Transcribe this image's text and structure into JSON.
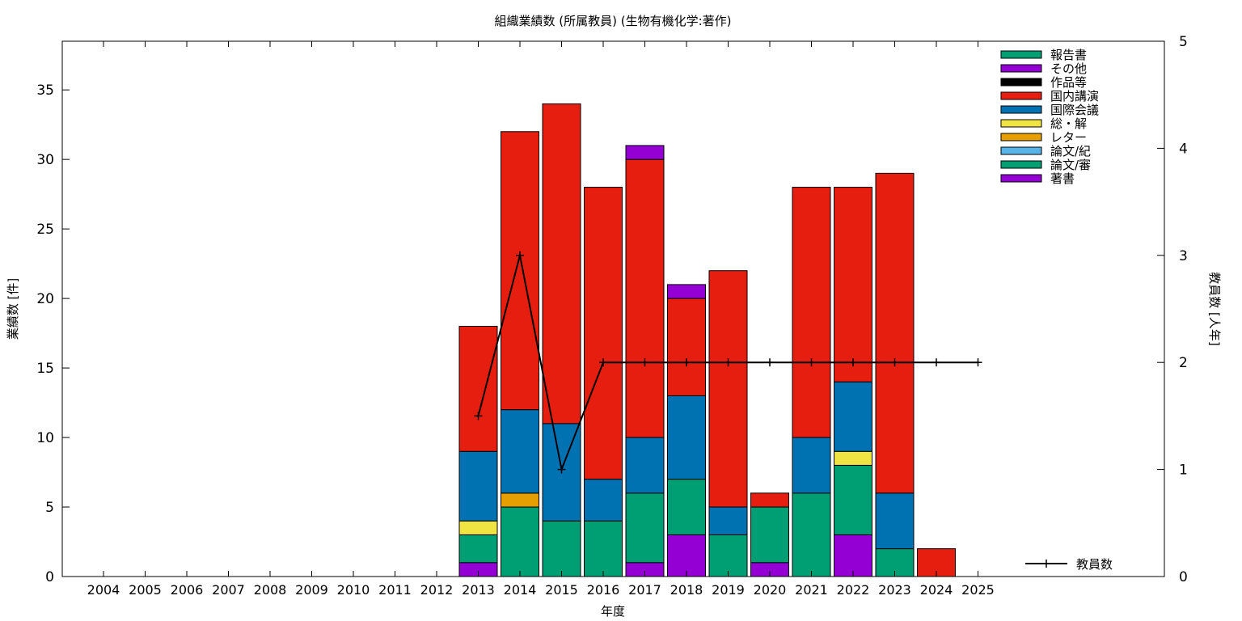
{
  "chart_data": {
    "type": "bar",
    "stacked": true,
    "title": "組織業績数 (所属教員) (生物有機化学:著作)",
    "xlabel": "年度",
    "ylabel": "業績数 [件]",
    "y2label": "教員数 [人年]",
    "ylim": [
      0,
      38.5
    ],
    "y2lim": [
      0,
      5
    ],
    "yticks": [
      "0",
      "5",
      "10",
      "15",
      "20",
      "25",
      "30",
      "35"
    ],
    "y2ticks": [
      "0",
      "1",
      "2",
      "3",
      "4",
      "5"
    ],
    "grid": false,
    "legend_position": "top-right",
    "categories": [
      "2004",
      "2005",
      "2006",
      "2007",
      "2008",
      "2009",
      "2010",
      "2011",
      "2012",
      "2013",
      "2014",
      "2015",
      "2016",
      "2017",
      "2018",
      "2019",
      "2020",
      "2021",
      "2022",
      "2023",
      "2024",
      "2025"
    ],
    "series": [
      {
        "name": "著書",
        "color": "#9400d3",
        "values": [
          0,
          0,
          0,
          0,
          0,
          0,
          0,
          0,
          0,
          1,
          0,
          0,
          0,
          1,
          3,
          0,
          1,
          0,
          3,
          0,
          0,
          0
        ]
      },
      {
        "name": "論文/審",
        "color": "#009e73",
        "values": [
          0,
          0,
          0,
          0,
          0,
          0,
          0,
          0,
          0,
          2,
          5,
          4,
          4,
          5,
          4,
          3,
          4,
          6,
          5,
          2,
          0,
          0
        ]
      },
      {
        "name": "論文/紀",
        "color": "#56b4e9",
        "values": [
          0,
          0,
          0,
          0,
          0,
          0,
          0,
          0,
          0,
          0,
          0,
          0,
          0,
          0,
          0,
          0,
          0,
          0,
          0,
          0,
          0,
          0
        ]
      },
      {
        "name": "レター",
        "color": "#e69f00",
        "values": [
          0,
          0,
          0,
          0,
          0,
          0,
          0,
          0,
          0,
          0,
          1,
          0,
          0,
          0,
          0,
          0,
          0,
          0,
          0,
          0,
          0,
          0
        ]
      },
      {
        "name": "総・解",
        "color": "#f0e442",
        "values": [
          0,
          0,
          0,
          0,
          0,
          0,
          0,
          0,
          0,
          1,
          0,
          0,
          0,
          0,
          0,
          0,
          0,
          0,
          1,
          0,
          0,
          0
        ]
      },
      {
        "name": "国際会議",
        "color": "#0072b2",
        "values": [
          0,
          0,
          0,
          0,
          0,
          0,
          0,
          0,
          0,
          5,
          6,
          7,
          3,
          4,
          6,
          2,
          0,
          4,
          5,
          4,
          0,
          0
        ]
      },
      {
        "name": "国内講演",
        "color": "#e51e10",
        "values": [
          0,
          0,
          0,
          0,
          0,
          0,
          0,
          0,
          0,
          9,
          20,
          23,
          21,
          20,
          7,
          17,
          1,
          18,
          14,
          23,
          2,
          0
        ]
      },
      {
        "name": "作品等",
        "color": "#000000",
        "values": [
          0,
          0,
          0,
          0,
          0,
          0,
          0,
          0,
          0,
          0,
          0,
          0,
          0,
          0,
          0,
          0,
          0,
          0,
          0,
          0,
          0,
          0
        ]
      },
      {
        "name": "その他",
        "color": "#9400d3",
        "values": [
          0,
          0,
          0,
          0,
          0,
          0,
          0,
          0,
          0,
          0,
          0,
          0,
          0,
          1,
          1,
          0,
          0,
          0,
          0,
          0,
          0,
          0
        ]
      },
      {
        "name": "報告書",
        "color": "#009e73",
        "values": [
          0,
          0,
          0,
          0,
          0,
          0,
          0,
          0,
          0,
          0,
          0,
          0,
          0,
          0,
          0,
          0,
          0,
          0,
          0,
          0,
          0,
          0
        ]
      }
    ],
    "legend_order": [
      "報告書",
      "その他",
      "作品等",
      "国内講演",
      "国際会議",
      "総・解",
      "レター",
      "論文/紀",
      "論文/審",
      "著書"
    ],
    "line_series": {
      "name": "教員数",
      "axis": "y2",
      "color": "#000000",
      "categories": [
        "2013",
        "2014",
        "2015",
        "2016",
        "2017",
        "2018",
        "2019",
        "2020",
        "2021",
        "2022",
        "2023",
        "2024",
        "2025"
      ],
      "values": [
        1.5,
        3,
        1,
        2,
        2,
        2,
        2,
        2,
        2,
        2,
        2,
        2,
        2
      ]
    }
  }
}
